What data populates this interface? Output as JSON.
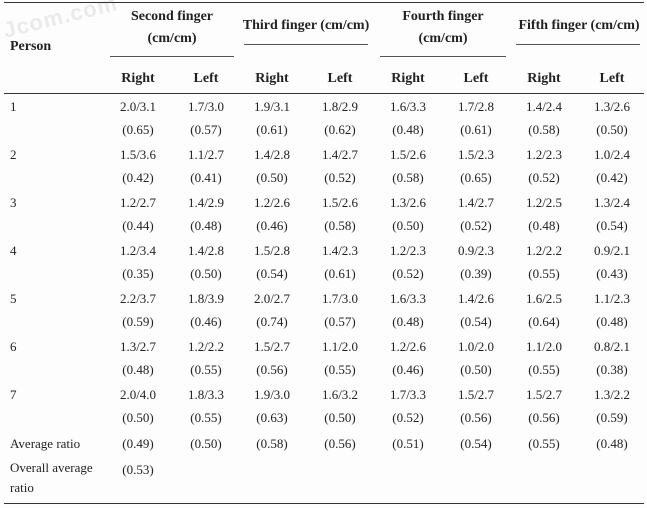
{
  "watermark": "Jcom.com",
  "header": {
    "person": "Person",
    "fingers": [
      {
        "line1": "Second finger",
        "line2": "(cm/cm)"
      },
      {
        "line1": "Third finger (cm/cm)",
        "line2": ""
      },
      {
        "line1": "Fourth finger",
        "line2": "(cm/cm)"
      },
      {
        "line1": "Fifth finger (cm/cm)",
        "line2": ""
      }
    ],
    "sides": [
      "Right",
      "Left",
      "Right",
      "Left",
      "Right",
      "Left",
      "Right",
      "Left"
    ]
  },
  "rows": [
    {
      "person": "1",
      "values": [
        "2.0/3.1",
        "1.7/3.0",
        "1.9/3.1",
        "1.8/2.9",
        "1.6/3.3",
        "1.7/2.8",
        "1.4/2.4",
        "1.3/2.6"
      ],
      "ratios": [
        "(0.65)",
        "(0.57)",
        "(0.61)",
        "(0.62)",
        "(0.48)",
        "(0.61)",
        "(0.58)",
        "(0.50)"
      ]
    },
    {
      "person": "2",
      "values": [
        "1.5/3.6",
        "1.1/2.7",
        "1.4/2.8",
        "1.4/2.7",
        "1.5/2.6",
        "1.5/2.3",
        "1.2/2.3",
        "1.0/2.4"
      ],
      "ratios": [
        "(0.42)",
        "(0.41)",
        "(0.50)",
        "(0.52)",
        "(0.58)",
        "(0.65)",
        "(0.52)",
        "(0.42)"
      ]
    },
    {
      "person": "3",
      "values": [
        "1.2/2.7",
        "1.4/2.9",
        "1.2/2.6",
        "1.5/2.6",
        "1.3/2.6",
        "1.4/2.7",
        "1.2/2.5",
        "1.3/2.4"
      ],
      "ratios": [
        "(0.44)",
        "(0.48)",
        "(0.46)",
        "(0.58)",
        "(0.50)",
        "(0.52)",
        "(0.48)",
        "(0.54)"
      ]
    },
    {
      "person": "4",
      "values": [
        "1.2/3.4",
        "1.4/2.8",
        "1.5/2.8",
        "1.4/2.3",
        "1.2/2.3",
        "0.9/2.3",
        "1.2/2.2",
        "0.9/2.1"
      ],
      "ratios": [
        "(0.35)",
        "(0.50)",
        "(0.54)",
        "(0.61)",
        "(0.52)",
        "(0.39)",
        "(0.55)",
        "(0.43)"
      ]
    },
    {
      "person": "5",
      "values": [
        "2.2/3.7",
        "1.8/3.9",
        "2.0/2.7",
        "1.7/3.0",
        "1.6/3.3",
        "1.4/2.6",
        "1.6/2.5",
        "1.1/2.3"
      ],
      "ratios": [
        "(0.59)",
        "(0.46)",
        "(0.74)",
        "(0.57)",
        "(0.48)",
        "(0.54)",
        "(0.64)",
        "(0.48)"
      ]
    },
    {
      "person": "6",
      "values": [
        "1.3/2.7",
        "1.2/2.2",
        "1.5/2.7",
        "1.1/2.0",
        "1.2/2.6",
        "1.0/2.0",
        "1.1/2.0",
        "0.8/2.1"
      ],
      "ratios": [
        "(0.48)",
        "(0.55)",
        "(0.56)",
        "(0.55)",
        "(0.46)",
        "(0.50)",
        "(0.55)",
        "(0.38)"
      ]
    },
    {
      "person": "7",
      "values": [
        "2.0/4.0",
        "1.8/3.3",
        "1.9/3.0",
        "1.6/3.2",
        "1.7/3.3",
        "1.5/2.7",
        "1.5/2.7",
        "1.3/2.2"
      ],
      "ratios": [
        "(0.50)",
        "(0.55)",
        "(0.63)",
        "(0.50)",
        "(0.52)",
        "(0.56)",
        "(0.56)",
        "(0.59)"
      ]
    }
  ],
  "average": {
    "label": "Average ratio",
    "values": [
      "(0.49)",
      "(0.50)",
      "(0.58)",
      "(0.56)",
      "(0.51)",
      "(0.54)",
      "(0.55)",
      "(0.48)"
    ]
  },
  "overall": {
    "label_line1": "Overall average",
    "label_line2": "ratio",
    "value": "(0.53)"
  }
}
